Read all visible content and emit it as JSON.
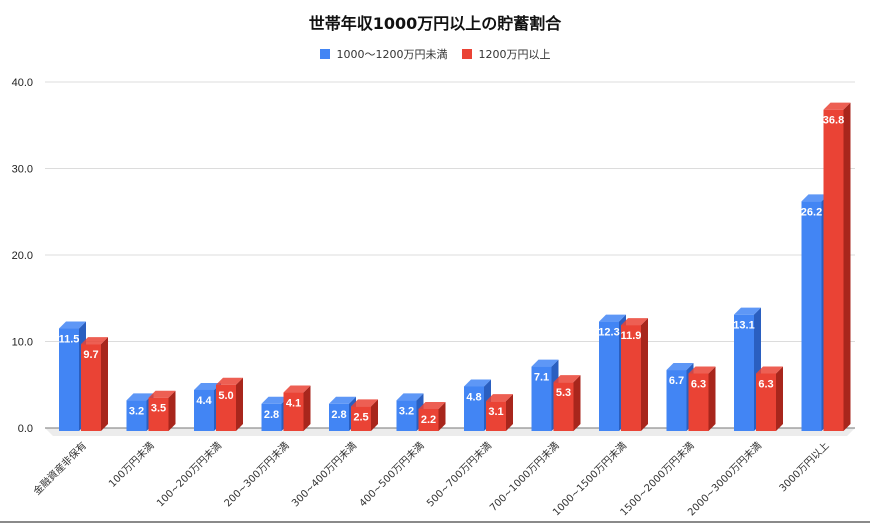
{
  "chart_data": {
    "type": "bar",
    "title": "世帯年収1000万円以上の貯蓄割合",
    "xlabel": "",
    "ylabel": "",
    "ylim": [
      0,
      40
    ],
    "yticks": [
      "0.0",
      "10.0",
      "20.0",
      "30.0",
      "40.0"
    ],
    "grid": true,
    "legend_position": "top",
    "style": "3d-bar",
    "categories": [
      "金融資産非保有",
      "100万円未満",
      "100~200万円未満",
      "200~300万円未満",
      "300~400万円未満",
      "400~500万円未満",
      "500~700万円未満",
      "700~1000万円未満",
      "1000~1500万円未満",
      "1500~2000万円未満",
      "2000~3000万円未満",
      "3000万円以上"
    ],
    "series": [
      {
        "name": "1000〜1200万円未満",
        "color": "#4285f4",
        "side_color": "#2a5fc0",
        "values": [
          11.5,
          3.2,
          4.4,
          2.8,
          2.8,
          3.2,
          4.8,
          7.1,
          12.3,
          6.7,
          13.1,
          26.2
        ]
      },
      {
        "name": "1200万円以上",
        "color": "#ea4335",
        "side_color": "#a8261c",
        "values": [
          9.7,
          3.5,
          5.0,
          4.1,
          2.5,
          2.2,
          3.1,
          5.3,
          11.9,
          6.3,
          6.3,
          36.8
        ]
      }
    ],
    "value_labels": true
  },
  "legend": {
    "items": [
      {
        "label": "1000〜1200万円未満",
        "color": "#4285f4"
      },
      {
        "label": "1200万円以上",
        "color": "#ea4335"
      }
    ]
  }
}
